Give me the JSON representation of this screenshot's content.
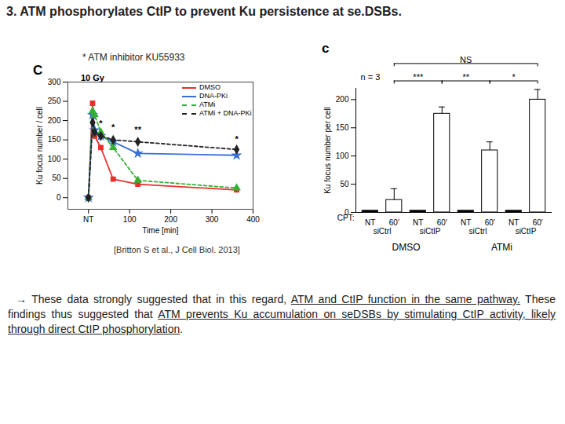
{
  "slide": {
    "title": "3. ATM phosphorylates CtIP to prevent Ku persistence at se.DSBs.",
    "note": "* ATM inhibitor KU55933",
    "citation": "[Britton S et al., J Cell Biol. 2013]",
    "caption": [
      {
        "text": "→ These data strongly suggested that in this regard, ",
        "underline": false
      },
      {
        "text": "ATM and CtIP function in the same pathway.",
        "underline": true
      },
      {
        "text": " These findings thus suggested that ",
        "underline": false
      },
      {
        "text": "ATM prevents Ku accumulation on seDSBs by stimulating CtIP activity, likely through direct CtIP phosphorylation",
        "underline": true
      },
      {
        "text": ".",
        "underline": false
      }
    ]
  },
  "chart_data": [
    {
      "type": "line",
      "panel": "C",
      "xlabel": "Time [min]",
      "ylabel": "Ku focus number / cell",
      "x": [
        0,
        10,
        15,
        30,
        60,
        120,
        360
      ],
      "xlim": [
        -50,
        400
      ],
      "xticks": [
        {
          "value": 0,
          "label": "NT"
        },
        100,
        200,
        300,
        400
      ],
      "ylim": [
        -30,
        300
      ],
      "yticks": [
        0,
        50,
        100,
        150,
        200,
        250,
        300
      ],
      "legend": "top-right",
      "series": [
        {
          "name": "DMSO",
          "color": "#e8302a",
          "marker": "square",
          "line_style": "solid",
          "values": [
            0,
            245,
            160,
            130,
            48,
            35,
            20
          ]
        },
        {
          "name": "DNA-PKi",
          "color": "#3a6fd8",
          "marker": "star",
          "line_style": "solid",
          "values": [
            0,
            215,
            175,
            160,
            145,
            115,
            110
          ]
        },
        {
          "name": "ATMi",
          "color": "#35b035",
          "marker": "triangle",
          "line_style": "dashed",
          "values": [
            0,
            225,
            215,
            170,
            130,
            45,
            25
          ]
        },
        {
          "name": "ATMi + DNA-PKi",
          "color": "#222222",
          "marker": "diamond",
          "line_style": "dashed",
          "values": [
            0,
            195,
            170,
            160,
            150,
            145,
            125
          ]
        }
      ],
      "annotations": [
        {
          "text": "10 Gy",
          "x": 10,
          "y": 300
        },
        {
          "text": "*",
          "x": 30,
          "y": 180
        },
        {
          "text": "*",
          "x": 60,
          "y": 170
        },
        {
          "text": "**",
          "x": 120,
          "y": 165
        },
        {
          "text": "*",
          "x": 360,
          "y": 140
        }
      ]
    },
    {
      "type": "bar",
      "panel": "c",
      "ylabel": "Ku focus number per cell",
      "xlabel": "CPT:",
      "subtitle": "n = 3",
      "categories": [
        "NT",
        "60′",
        "NT",
        "60′",
        "NT",
        "60′",
        "NT",
        "60′"
      ],
      "values": [
        3,
        22,
        3,
        175,
        3,
        110,
        3,
        200
      ],
      "errors": [
        null,
        20,
        null,
        12,
        null,
        15,
        null,
        18
      ],
      "colors": [
        "#000000",
        "#ffffff",
        "#000000",
        "#ffffff",
        "#000000",
        "#ffffff",
        "#000000",
        "#ffffff"
      ],
      "ylim": [
        0,
        220
      ],
      "yticks": [
        0,
        50,
        100,
        150,
        200
      ],
      "groups": [
        {
          "label": "siCtrl",
          "span": [
            0,
            1
          ]
        },
        {
          "label": "siCtIP",
          "span": [
            2,
            3
          ]
        },
        {
          "label": "siCtrl",
          "span": [
            4,
            5
          ]
        },
        {
          "label": "siCtIP",
          "span": [
            6,
            7
          ]
        }
      ],
      "conditions": [
        {
          "label": "DMSO",
          "span": [
            0,
            3
          ]
        },
        {
          "label": "ATMi",
          "span": [
            4,
            7
          ]
        }
      ],
      "comparisons": [
        {
          "from": 1,
          "to": 3,
          "label": "***"
        },
        {
          "from": 3,
          "to": 5,
          "label": "**"
        },
        {
          "from": 5,
          "to": 7,
          "label": "*"
        },
        {
          "from": 1,
          "to": 7,
          "label": "NS"
        }
      ]
    }
  ]
}
